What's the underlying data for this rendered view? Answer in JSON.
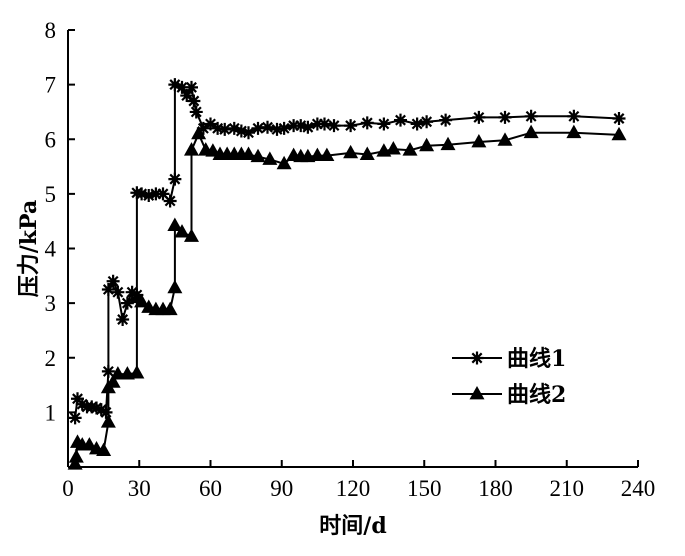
{
  "chart_data": {
    "type": "line",
    "xlabel": "时间/d",
    "ylabel": "压力/kPa",
    "xlim": [
      0,
      240
    ],
    "ylim": [
      0,
      8
    ],
    "xticks": [
      0,
      30,
      60,
      90,
      120,
      150,
      180,
      210,
      240
    ],
    "yticks": [
      1,
      2,
      3,
      4,
      5,
      6,
      7,
      8
    ],
    "grid": false,
    "legend_position": "right-middle",
    "series": [
      {
        "name": "曲线1",
        "marker": "star",
        "color": "#000000",
        "points": [
          [
            3,
            0.9
          ],
          [
            4,
            1.25
          ],
          [
            6,
            1.15
          ],
          [
            8,
            1.1
          ],
          [
            10,
            1.1
          ],
          [
            12,
            1.08
          ],
          [
            14,
            1.05
          ],
          [
            16,
            1.0
          ],
          [
            17,
            1.75
          ],
          [
            17,
            3.25
          ],
          [
            19,
            3.4
          ],
          [
            21,
            3.2
          ],
          [
            23,
            2.7
          ],
          [
            25,
            3.0
          ],
          [
            27,
            3.2
          ],
          [
            29,
            3.15
          ],
          [
            29,
            5.02
          ],
          [
            31,
            5.0
          ],
          [
            34,
            4.97
          ],
          [
            37,
            5.0
          ],
          [
            40,
            5.0
          ],
          [
            43,
            4.87
          ],
          [
            45,
            5.27
          ],
          [
            45,
            7.0
          ],
          [
            48,
            6.95
          ],
          [
            50,
            6.8
          ],
          [
            52,
            6.95
          ],
          [
            53,
            6.7
          ],
          [
            54,
            6.5
          ],
          [
            57,
            6.2
          ],
          [
            60,
            6.28
          ],
          [
            63,
            6.2
          ],
          [
            66,
            6.18
          ],
          [
            70,
            6.2
          ],
          [
            73,
            6.15
          ],
          [
            76,
            6.12
          ],
          [
            80,
            6.2
          ],
          [
            84,
            6.22
          ],
          [
            88,
            6.18
          ],
          [
            91,
            6.2
          ],
          [
            95,
            6.25
          ],
          [
            98,
            6.25
          ],
          [
            101,
            6.22
          ],
          [
            105,
            6.28
          ],
          [
            108,
            6.28
          ],
          [
            112,
            6.25
          ],
          [
            119,
            6.25
          ],
          [
            126,
            6.3
          ],
          [
            133,
            6.28
          ],
          [
            140,
            6.35
          ],
          [
            147,
            6.28
          ],
          [
            151,
            6.32
          ],
          [
            159,
            6.35
          ],
          [
            173,
            6.4
          ],
          [
            184,
            6.4
          ],
          [
            195,
            6.42
          ],
          [
            213,
            6.42
          ],
          [
            232,
            6.38
          ]
        ]
      },
      {
        "name": "曲线2",
        "marker": "triangle",
        "color": "#000000",
        "points": [
          [
            3,
            0.05
          ],
          [
            3.5,
            0.18
          ],
          [
            4,
            0.45
          ],
          [
            6,
            0.4
          ],
          [
            9,
            0.4
          ],
          [
            12,
            0.33
          ],
          [
            15,
            0.3
          ],
          [
            17,
            0.82
          ],
          [
            17,
            1.45
          ],
          [
            19,
            1.55
          ],
          [
            21,
            1.7
          ],
          [
            25,
            1.7
          ],
          [
            29,
            1.72
          ],
          [
            29,
            3.1
          ],
          [
            31,
            3.02
          ],
          [
            34,
            2.92
          ],
          [
            37,
            2.88
          ],
          [
            40,
            2.88
          ],
          [
            43,
            2.88
          ],
          [
            45,
            3.28
          ],
          [
            45,
            4.42
          ],
          [
            48,
            4.3
          ],
          [
            52,
            4.22
          ],
          [
            52,
            5.8
          ],
          [
            55,
            6.1
          ],
          [
            58,
            5.8
          ],
          [
            61,
            5.78
          ],
          [
            64,
            5.72
          ],
          [
            67,
            5.72
          ],
          [
            70,
            5.72
          ],
          [
            73,
            5.72
          ],
          [
            76,
            5.72
          ],
          [
            80,
            5.68
          ],
          [
            85,
            5.63
          ],
          [
            91,
            5.55
          ],
          [
            95,
            5.7
          ],
          [
            98,
            5.68
          ],
          [
            101,
            5.68
          ],
          [
            105,
            5.7
          ],
          [
            109,
            5.7
          ],
          [
            119,
            5.75
          ],
          [
            126,
            5.72
          ],
          [
            133,
            5.78
          ],
          [
            137,
            5.82
          ],
          [
            144,
            5.8
          ],
          [
            151,
            5.88
          ],
          [
            160,
            5.9
          ],
          [
            173,
            5.95
          ],
          [
            184,
            5.98
          ],
          [
            195,
            6.12
          ],
          [
            213,
            6.12
          ],
          [
            232,
            6.08
          ]
        ]
      }
    ]
  }
}
